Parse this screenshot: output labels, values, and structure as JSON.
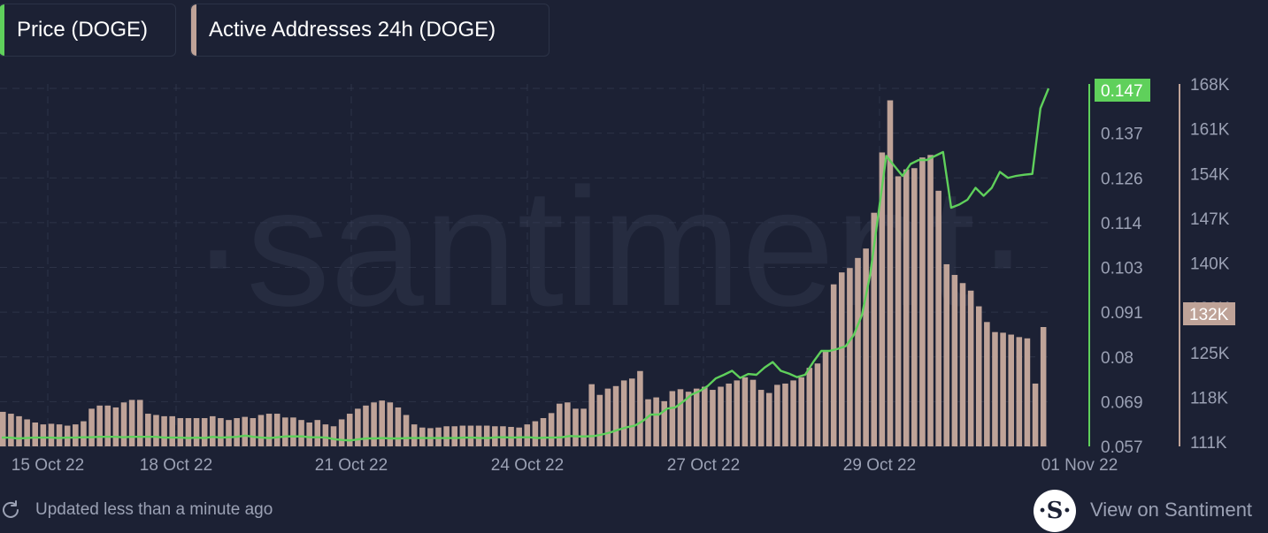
{
  "legend": {
    "price_label": "Price (DOGE)",
    "addresses_label": "Active Addresses 24h (DOGE)"
  },
  "colors": {
    "background": "#1c2134",
    "price": "#5fd05b",
    "addresses": "#bfa398",
    "grid": "#3a4157",
    "axis_text": "#9ba1b4"
  },
  "footer": {
    "updated_text": "Updated less than a minute ago",
    "refresh_icon": "refresh-icon",
    "link_text": "View on Santiment",
    "logo_glyph": "·S·"
  },
  "watermark": "·santiment·",
  "chart_data": {
    "type": "bar+line",
    "x_ticks": [
      "15 Oct 22",
      "18 Oct 22",
      "21 Oct 22",
      "24 Oct 22",
      "27 Oct 22",
      "29 Oct 22",
      "01 Nov 22"
    ],
    "price_axis": {
      "ticks": [
        "0.147",
        "0.137",
        "0.126",
        "0.114",
        "0.103",
        "0.091",
        "0.08",
        "0.069",
        "0.057"
      ],
      "range": [
        0.057,
        0.147
      ],
      "current_label": "0.147"
    },
    "addresses_axis": {
      "ticks": [
        "168K",
        "161K",
        "154K",
        "147K",
        "140K",
        "132K",
        "125K",
        "118K",
        "111K"
      ],
      "range": [
        111000,
        168000
      ],
      "current_label": "132K"
    },
    "series": [
      {
        "name": "Active Addresses 24h (DOGE)",
        "kind": "bar",
        "values": [
          116500,
          116200,
          115800,
          115300,
          114800,
          114500,
          114600,
          114500,
          114300,
          114500,
          115000,
          117000,
          117500,
          117500,
          117200,
          118000,
          118400,
          118400,
          116200,
          116000,
          115800,
          115800,
          115500,
          115500,
          115500,
          115500,
          115800,
          115500,
          115200,
          115500,
          115700,
          115500,
          116000,
          116200,
          116200,
          115600,
          115600,
          115200,
          114800,
          115200,
          114500,
          114200,
          115300,
          116200,
          117000,
          117500,
          118000,
          118300,
          118000,
          117200,
          116000,
          114500,
          114000,
          113900,
          114000,
          114200,
          114200,
          114300,
          114300,
          114300,
          114300,
          114200,
          114200,
          114100,
          114000,
          114500,
          115000,
          115500,
          116300,
          117800,
          118000,
          117000,
          117000,
          120900,
          119200,
          120200,
          120600,
          121500,
          121800,
          123000,
          118500,
          118800,
          118200,
          119800,
          120100,
          119700,
          120200,
          120500,
          120000,
          120500,
          121000,
          121500,
          122000,
          121600,
          120000,
          119500,
          120800,
          121000,
          121500,
          122000,
          123500,
          124200,
          126200,
          136800,
          138700,
          139400,
          141000,
          142500,
          148200,
          157800,
          166100,
          154000,
          155100,
          155300,
          157000,
          157400,
          151700,
          140000,
          138300,
          137000,
          135800,
          133300,
          130800,
          129200,
          129100,
          128800,
          128400,
          128200,
          121000,
          130000
        ],
        "note": "bar heights estimated from 111K baseline"
      },
      {
        "name": "Price (DOGE)",
        "kind": "line",
        "values": [
          0.0592,
          0.0592,
          0.059,
          0.0591,
          0.0592,
          0.0592,
          0.0592,
          0.0591,
          0.0592,
          0.0592,
          0.0593,
          0.0593,
          0.0594,
          0.0594,
          0.0594,
          0.0593,
          0.0594,
          0.0594,
          0.0594,
          0.0594,
          0.0592,
          0.0592,
          0.0592,
          0.0591,
          0.0592,
          0.0591,
          0.0594,
          0.0592,
          0.0593,
          0.0594,
          0.0597,
          0.0594,
          0.0592,
          0.0591,
          0.0593,
          0.0595,
          0.0595,
          0.0595,
          0.0593,
          0.0593,
          0.0592,
          0.0588,
          0.0586,
          0.0585,
          0.0588,
          0.059,
          0.059,
          0.0591,
          0.059,
          0.059,
          0.0591,
          0.0591,
          0.0591,
          0.0591,
          0.0591,
          0.0591,
          0.0591,
          0.0592,
          0.0592,
          0.0591,
          0.0591,
          0.0593,
          0.0593,
          0.0592,
          0.0593,
          0.0593,
          0.0591,
          0.0592,
          0.0592,
          0.0593,
          0.0596,
          0.0595,
          0.0595,
          0.0596,
          0.06,
          0.0605,
          0.0612,
          0.0618,
          0.0622,
          0.0634,
          0.065,
          0.065,
          0.0665,
          0.0668,
          0.0683,
          0.07,
          0.0709,
          0.0722,
          0.0741,
          0.075,
          0.076,
          0.0742,
          0.0752,
          0.075,
          0.0768,
          0.0782,
          0.076,
          0.0753,
          0.0744,
          0.075,
          0.0782,
          0.081,
          0.081,
          0.0815,
          0.0822,
          0.085,
          0.09,
          0.1,
          0.115,
          0.13,
          0.1275,
          0.125,
          0.128,
          0.129,
          0.129,
          0.13,
          0.131,
          0.117,
          0.1178,
          0.119,
          0.122,
          0.12,
          0.122,
          0.126,
          0.1245,
          0.125,
          0.1253,
          0.1255,
          0.142,
          0.147
        ]
      }
    ]
  }
}
